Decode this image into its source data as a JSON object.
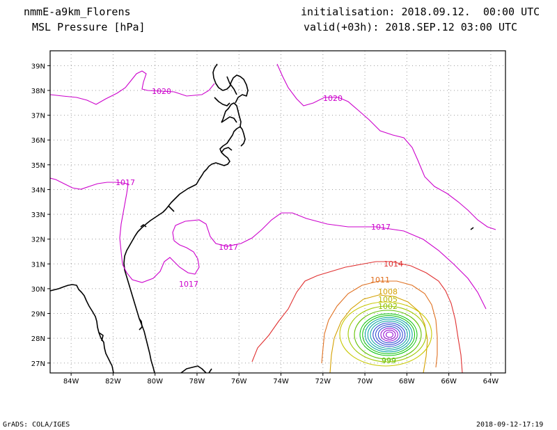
{
  "header": {
    "model": "nmmE-a9km_Florens",
    "field": "MSL Pressure [hPa]",
    "init": "initialisation: 2018.09.12.  00:00 UTC",
    "valid": "valid(+03h): 2018.SEP.12 03:00 UTC"
  },
  "footer": {
    "left": "GrADS: COLA/IGES",
    "right": "2018-09-12-17:19"
  },
  "map": {
    "lon_range": [
      -85,
      -63.3
    ],
    "lat_range": [
      26.6,
      39.6
    ],
    "lon_ticks": [
      "84W",
      "82W",
      "80W",
      "78W",
      "76W",
      "74W",
      "72W",
      "70W",
      "68W",
      "66W",
      "64W"
    ],
    "lat_ticks": [
      "39N",
      "38N",
      "37N",
      "36N",
      "35N",
      "34N",
      "33N",
      "32N",
      "31N",
      "30N",
      "29N",
      "28N",
      "27N"
    ],
    "grid": true,
    "colors": {
      "coast": "#000000",
      "c1020": "#cc00cc",
      "c1017": "#cc00cc",
      "c1014": "#e03030",
      "c1011": "#e07020",
      "c1008": "#d4a000",
      "c1005": "#c8c800",
      "c1002": "#a0c800",
      "inner_green": "#00c000",
      "inner_teal": "#00a0a0",
      "inner_blue": "#2040d0",
      "inner_purple": "#9000d0"
    },
    "contour_labels": {
      "l1020_west": "1020",
      "l1020_east": "1020",
      "l1017_a": "1017",
      "l1017_b": "1017",
      "l1017_c": "1017",
      "l1017_d": "1017",
      "l1014": "1014",
      "l1011": "1011",
      "l1008": "1008",
      "l1005": "1005",
      "l1002": "1002",
      "l999": "999"
    }
  }
}
